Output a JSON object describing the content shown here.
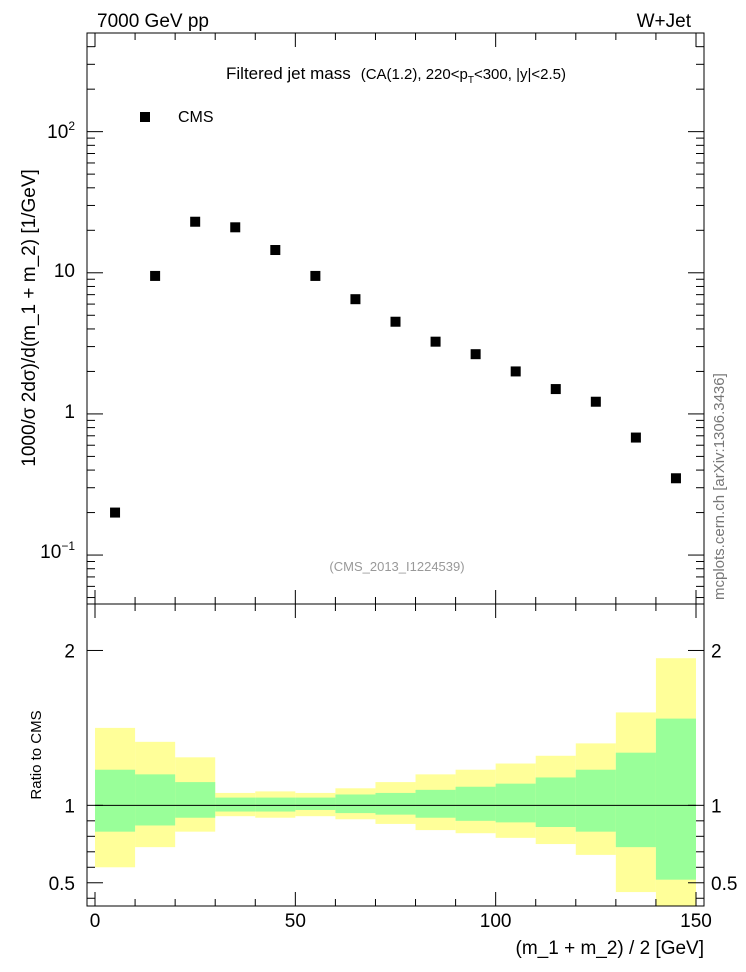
{
  "header": {
    "left": "7000 GeV pp",
    "right": "W+Jet"
  },
  "side_label": "mcplots.cern.ch [arXiv:1306.3436]",
  "chart_data": [
    {
      "type": "scatter",
      "title_main": "Filtered jet mass",
      "title_detail_a": "(CA(1.2), 220<p",
      "title_detail_sub": "T",
      "title_detail_b": "<300, |y|<2.5)",
      "ylabel": "1000/σ 2dσ)/d(m_1 + m_2) [1/GeV]",
      "yscale": "log",
      "ylim": [
        0.045,
        500
      ],
      "xlim": [
        -2,
        152
      ],
      "ytick_labels": [
        {
          "value": 0.1,
          "base": "10",
          "exp": "−1"
        },
        {
          "value": 1,
          "base": "1",
          "exp": ""
        },
        {
          "value": 10,
          "base": "10",
          "exp": ""
        },
        {
          "value": 100,
          "base": "10",
          "exp": "2"
        }
      ],
      "legend": {
        "position": "top-left",
        "entries": [
          "CMS"
        ]
      },
      "watermark": "(CMS_2013_I1224539)",
      "series": [
        {
          "name": "CMS",
          "x": [
            5,
            15,
            25,
            35,
            45,
            55,
            65,
            75,
            85,
            95,
            105,
            115,
            125,
            135,
            145
          ],
          "y": [
            0.2,
            9.5,
            23,
            21,
            14.5,
            9.5,
            6.5,
            4.5,
            3.25,
            2.65,
            2.0,
            1.5,
            1.22,
            0.68,
            0.35
          ],
          "color": "#000000"
        }
      ]
    },
    {
      "type": "area",
      "ylabel": "Ratio to CMS",
      "xlabel": "(m_1 + m_2) / 2 [GeV]",
      "xlim": [
        -2,
        152
      ],
      "ylim": [
        0.35,
        2.3
      ],
      "xticks": [
        0,
        50,
        100,
        150
      ],
      "yticks": [
        0.5,
        1,
        2
      ],
      "reference_line": 1,
      "bins": [
        0,
        10,
        20,
        30,
        40,
        50,
        60,
        70,
        80,
        90,
        100,
        110,
        120,
        130,
        140,
        150
      ],
      "bands": [
        {
          "color": "#ffff99",
          "low": [
            0.6,
            0.73,
            0.83,
            0.93,
            0.92,
            0.93,
            0.91,
            0.88,
            0.84,
            0.82,
            0.79,
            0.75,
            0.68,
            0.44,
            0.3
          ],
          "high": [
            1.5,
            1.41,
            1.31,
            1.08,
            1.09,
            1.08,
            1.11,
            1.15,
            1.2,
            1.23,
            1.27,
            1.32,
            1.4,
            1.6,
            1.95
          ]
        },
        {
          "color": "#99ff99",
          "low": [
            0.83,
            0.87,
            0.92,
            0.96,
            0.96,
            0.97,
            0.95,
            0.94,
            0.92,
            0.9,
            0.89,
            0.86,
            0.83,
            0.73,
            0.52
          ],
          "high": [
            1.23,
            1.2,
            1.15,
            1.05,
            1.05,
            1.05,
            1.07,
            1.08,
            1.1,
            1.12,
            1.14,
            1.18,
            1.23,
            1.34,
            1.56
          ]
        }
      ]
    }
  ]
}
